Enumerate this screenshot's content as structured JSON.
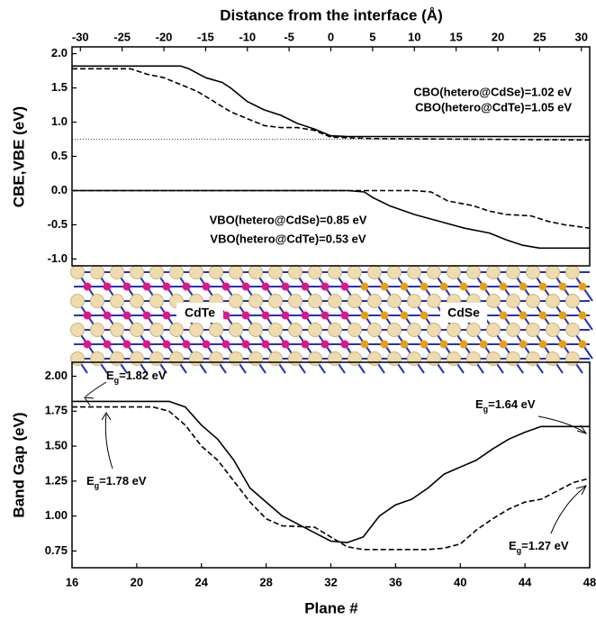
{
  "chart_data": [
    {
      "type": "line",
      "x_label": "Distance from the interface (Å)",
      "y_label": "CBE,VBE (eV)",
      "xlim": [
        -31,
        31
      ],
      "xticks": [
        -30,
        -25,
        -20,
        -15,
        -10,
        -5,
        0,
        5,
        10,
        15,
        20,
        25,
        30
      ],
      "ylim": [
        -1.1,
        2.1
      ],
      "yticks": [
        {
          "value": 2.0,
          "label": "2.0"
        },
        {
          "value": 1.5,
          "label": "1.5"
        },
        {
          "value": 1.0,
          "label": "1.0"
        },
        {
          "value": 0.5,
          "label": "0.5"
        },
        {
          "value": 0.0,
          "label": "0.0"
        },
        {
          "value": -0.5,
          "label": "-0.5"
        },
        {
          "value": -1.0,
          "label": "-1.0"
        }
      ],
      "reference_line": 0.75,
      "series": [
        {
          "color": "#000000",
          "dash": "solid",
          "x": [
            -31,
            -18,
            -17,
            -15,
            -13,
            -12,
            -10,
            -8,
            -6,
            -4,
            -2,
            0,
            2,
            31
          ],
          "values": [
            1.82,
            1.82,
            1.78,
            1.65,
            1.58,
            1.5,
            1.3,
            1.18,
            1.1,
            0.98,
            0.9,
            0.8,
            0.79,
            0.79
          ]
        },
        {
          "color": "#000000",
          "dash": "dashed",
          "x": [
            -31,
            -24,
            -22,
            -20,
            -18,
            -16,
            -14,
            -12,
            -10,
            -8,
            -6,
            -4,
            -2,
            0,
            5,
            31
          ],
          "values": [
            1.78,
            1.78,
            1.7,
            1.65,
            1.55,
            1.45,
            1.3,
            1.15,
            1.05,
            0.95,
            0.92,
            0.92,
            0.88,
            0.78,
            0.76,
            0.74
          ]
        },
        {
          "color": "#000000",
          "dash": "solid",
          "x": [
            -31,
            2,
            4,
            5,
            7,
            10,
            13,
            16,
            19,
            21,
            23,
            25,
            31
          ],
          "values": [
            0,
            0,
            -0.02,
            -0.1,
            -0.22,
            -0.35,
            -0.45,
            -0.55,
            -0.62,
            -0.72,
            -0.8,
            -0.84,
            -0.84
          ]
        },
        {
          "color": "#000000",
          "dash": "dashed",
          "x": [
            -31,
            10,
            12,
            14,
            17,
            19,
            21,
            24,
            26,
            28,
            31
          ],
          "values": [
            0,
            0,
            -0.02,
            -0.15,
            -0.22,
            -0.3,
            -0.35,
            -0.37,
            -0.45,
            -0.5,
            -0.55
          ]
        }
      ],
      "annotations": [
        "CBO(hetero@CdSe)=1.02 eV",
        "CBO(hetero@CdTe)=1.05 eV",
        "VBO(hetero@CdSe)=0.85 eV",
        "VBO(hetero@CdTe)=0.53 eV"
      ]
    },
    {
      "type": "line",
      "x_label": "Plane #",
      "y_label": "Band Gap (eV)",
      "xlim": [
        16,
        48
      ],
      "xticks": [
        16,
        20,
        24,
        28,
        32,
        36,
        40,
        44,
        48
      ],
      "ylim": [
        0.63,
        2.1
      ],
      "yticks": [
        {
          "value": 2.0,
          "label": "2.00"
        },
        {
          "value": 1.75,
          "label": "1.75"
        },
        {
          "value": 1.5,
          "label": "1.50"
        },
        {
          "value": 1.25,
          "label": "1.25"
        },
        {
          "value": 1.0,
          "label": "1.00"
        },
        {
          "value": 0.75,
          "label": "0.75"
        }
      ],
      "series": [
        {
          "color": "#000000",
          "dash": "solid",
          "x": [
            16,
            22,
            23,
            24,
            25,
            26,
            27,
            28,
            29,
            30,
            31,
            32,
            33,
            34,
            35,
            36,
            37,
            38,
            39,
            40,
            41,
            42,
            43,
            44,
            45,
            48
          ],
          "values": [
            1.82,
            1.82,
            1.78,
            1.65,
            1.55,
            1.4,
            1.2,
            1.1,
            1.0,
            0.94,
            0.88,
            0.82,
            0.81,
            0.85,
            1.0,
            1.08,
            1.12,
            1.2,
            1.3,
            1.35,
            1.4,
            1.48,
            1.55,
            1.6,
            1.64,
            1.64
          ]
        },
        {
          "color": "#000000",
          "dash": "dashed",
          "x": [
            16,
            21,
            22,
            23,
            24,
            25,
            26,
            27,
            28,
            29,
            31,
            32,
            33,
            34,
            38,
            39,
            40,
            41,
            42,
            43,
            44,
            45,
            46,
            47,
            48
          ],
          "values": [
            1.78,
            1.78,
            1.75,
            1.65,
            1.5,
            1.4,
            1.25,
            1.1,
            0.98,
            0.93,
            0.92,
            0.85,
            0.78,
            0.76,
            0.76,
            0.77,
            0.8,
            0.9,
            0.98,
            1.05,
            1.1,
            1.12,
            1.18,
            1.24,
            1.27
          ]
        }
      ],
      "annotations": [
        {
          "symbol": "E",
          "subscript": "g",
          "text": "=1.82 eV"
        },
        {
          "symbol": "E",
          "subscript": "g",
          "text": "=1.78 eV"
        },
        {
          "symbol": "E",
          "subscript": "g",
          "text": "=1.64 eV"
        },
        {
          "symbol": "E",
          "subscript": "g",
          "text": "=1.27 eV"
        }
      ]
    }
  ],
  "structure": {
    "labels": [
      "CdTe",
      "CdSe"
    ]
  }
}
